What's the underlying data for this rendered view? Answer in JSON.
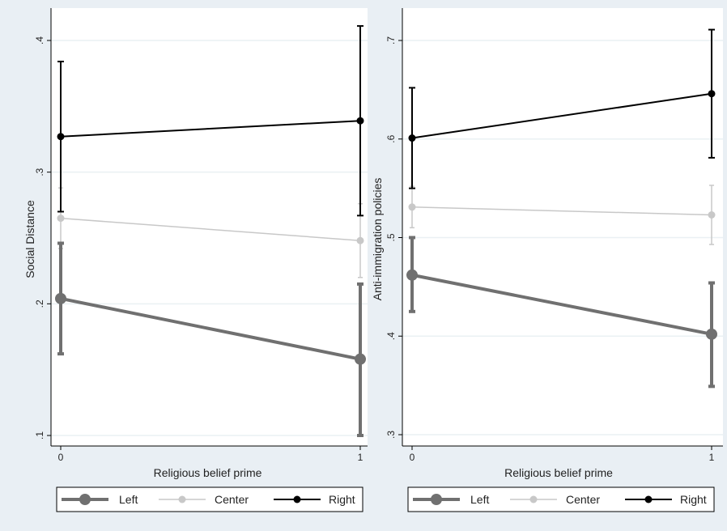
{
  "chart_data": [
    {
      "type": "line",
      "xlabel": "Religious belief prime",
      "ylabel": "Social Distance",
      "x": [
        0,
        1
      ],
      "x_ticks": [
        "0",
        "1"
      ],
      "ylim": [
        0.1,
        0.42
      ],
      "y_ticks": [
        {
          "value": 0.1,
          "label": ".1"
        },
        {
          "value": 0.2,
          "label": ".2"
        },
        {
          "value": 0.3,
          "label": ".3"
        },
        {
          "value": 0.4,
          "label": ".4"
        }
      ],
      "grid": true,
      "legend_position": "bottom",
      "series": [
        {
          "name": "Left",
          "color": "#707070",
          "values": [
            0.204,
            0.158
          ],
          "ci_low": [
            0.162,
            0.1
          ],
          "ci_high": [
            0.246,
            0.215
          ],
          "style": "thick"
        },
        {
          "name": "Center",
          "color": "#c8c8c8",
          "values": [
            0.265,
            0.248
          ],
          "ci_low": [
            0.242,
            0.22
          ],
          "ci_high": [
            0.288,
            0.276
          ],
          "style": "thin"
        },
        {
          "name": "Right",
          "color": "#000000",
          "values": [
            0.327,
            0.339
          ],
          "ci_low": [
            0.27,
            0.267
          ],
          "ci_high": [
            0.384,
            0.411
          ],
          "style": "medium"
        }
      ]
    },
    {
      "type": "line",
      "xlabel": "Religious belief prime",
      "ylabel": "Anti-immigration policies",
      "x": [
        0,
        1
      ],
      "x_ticks": [
        "0",
        "1"
      ],
      "ylim": [
        0.3,
        0.71
      ],
      "y_ticks": [
        {
          "value": 0.3,
          "label": ".3"
        },
        {
          "value": 0.4,
          "label": ".4"
        },
        {
          "value": 0.5,
          "label": ".5"
        },
        {
          "value": 0.6,
          "label": ".6"
        },
        {
          "value": 0.7,
          "label": ".7"
        }
      ],
      "grid": true,
      "legend_position": "bottom",
      "series": [
        {
          "name": "Left",
          "color": "#707070",
          "values": [
            0.462,
            0.402
          ],
          "ci_low": [
            0.425,
            0.349
          ],
          "ci_high": [
            0.5,
            0.454
          ],
          "style": "thick"
        },
        {
          "name": "Center",
          "color": "#c8c8c8",
          "values": [
            0.531,
            0.523
          ],
          "ci_low": [
            0.51,
            0.493
          ],
          "ci_high": [
            0.552,
            0.553
          ],
          "style": "thin"
        },
        {
          "name": "Right",
          "color": "#000000",
          "values": [
            0.601,
            0.646
          ],
          "ci_low": [
            0.55,
            0.581
          ],
          "ci_high": [
            0.652,
            0.711
          ],
          "style": "medium"
        }
      ]
    }
  ]
}
